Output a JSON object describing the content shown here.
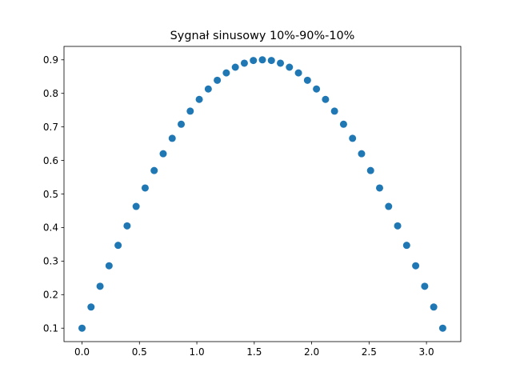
{
  "chart_data": {
    "type": "scatter",
    "title": "Sygnał sinusowy 10%-90%-10%",
    "xlabel": "",
    "ylabel": "",
    "xlim": [
      -0.157,
      3.299
    ],
    "ylim": [
      0.06,
      0.94
    ],
    "x_ticks": [
      "0.0",
      "0.5",
      "1.0",
      "1.5",
      "2.0",
      "2.5",
      "3.0"
    ],
    "y_ticks": [
      "0.1",
      "0.2",
      "0.3",
      "0.4",
      "0.5",
      "0.6",
      "0.7",
      "0.8",
      "0.9"
    ],
    "grid": false,
    "legend": false,
    "marker_color": "#1f77b4",
    "x": [
      0.0,
      0.0785,
      0.1571,
      0.2356,
      0.3142,
      0.3927,
      0.4712,
      0.5498,
      0.6283,
      0.7069,
      0.7854,
      0.8639,
      0.9425,
      1.021,
      1.0996,
      1.1781,
      1.2566,
      1.3352,
      1.4137,
      1.4923,
      1.5708,
      1.6493,
      1.7279,
      1.8064,
      1.885,
      1.9635,
      2.042,
      2.1206,
      2.1991,
      2.2777,
      2.3562,
      2.4347,
      2.5133,
      2.5918,
      2.6704,
      2.7489,
      2.8274,
      2.906,
      2.9845,
      3.0631,
      3.1416
    ],
    "y": [
      0.1,
      0.163,
      0.225,
      0.286,
      0.347,
      0.405,
      0.463,
      0.518,
      0.57,
      0.62,
      0.666,
      0.708,
      0.747,
      0.782,
      0.813,
      0.839,
      0.861,
      0.878,
      0.89,
      0.898,
      0.9,
      0.898,
      0.89,
      0.878,
      0.861,
      0.839,
      0.813,
      0.782,
      0.747,
      0.708,
      0.666,
      0.62,
      0.57,
      0.518,
      0.463,
      0.405,
      0.347,
      0.286,
      0.225,
      0.163,
      0.1
    ]
  }
}
